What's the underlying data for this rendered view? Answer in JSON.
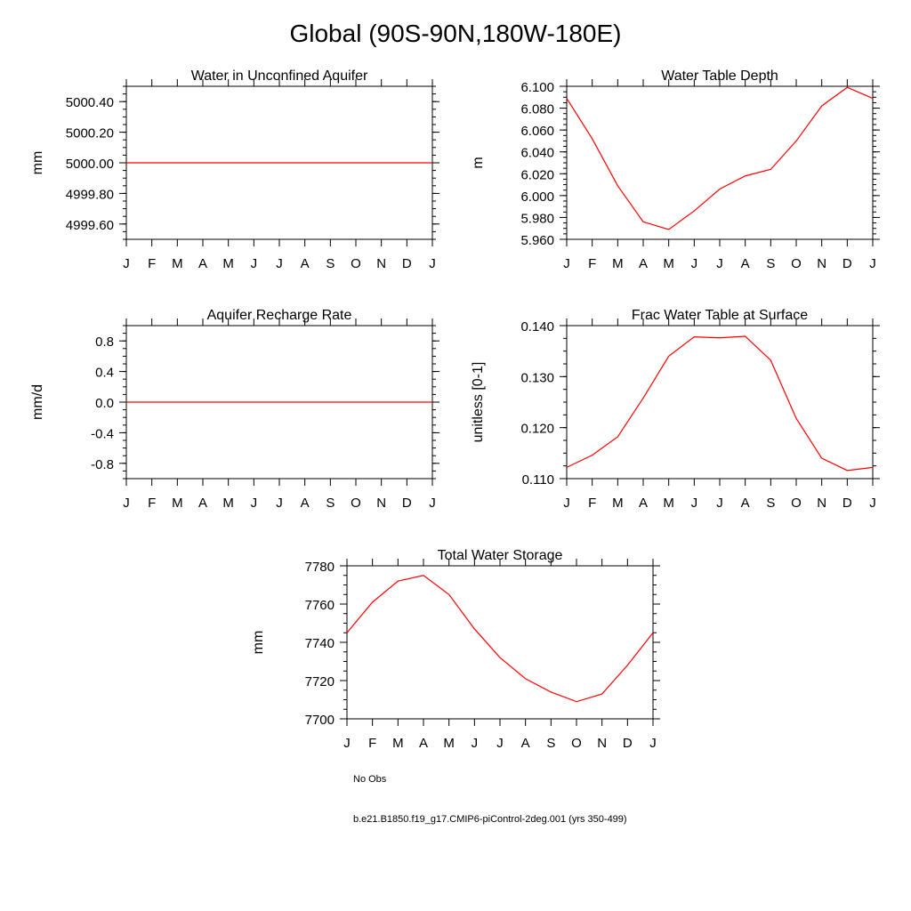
{
  "page_title": "Global (90S-90N,180W-180E)",
  "chart_data": [
    {
      "id": "aquifer",
      "type": "line",
      "title": "Water in Unconfined Aquifer",
      "ylabel": "mm",
      "xlabel": "",
      "categories": [
        "J",
        "F",
        "M",
        "A",
        "M",
        "J",
        "J",
        "A",
        "S",
        "O",
        "N",
        "D",
        "J"
      ],
      "ylim": [
        4999.5,
        5000.5
      ],
      "yticks": [
        4999.6,
        4999.8,
        5000.0,
        5000.2,
        5000.4
      ],
      "ytick_labels": [
        "4999.60",
        "4999.80",
        "5000.00",
        "5000.20",
        "5000.40"
      ],
      "yminor": 0.05,
      "grid": false,
      "series": [
        {
          "name": "b.e21.B1850.f19_g17.CMIP6-piControl-2deg.001 (yrs 350-499)",
          "color": "#ff0000",
          "values": [
            5000.0,
            5000.0,
            5000.0,
            5000.0,
            5000.0,
            5000.0,
            5000.0,
            5000.0,
            5000.0,
            5000.0,
            5000.0,
            5000.0,
            5000.0
          ]
        }
      ]
    },
    {
      "id": "wtd",
      "type": "line",
      "title": "Water Table Depth",
      "ylabel": "m",
      "xlabel": "",
      "categories": [
        "J",
        "F",
        "M",
        "A",
        "M",
        "J",
        "J",
        "A",
        "S",
        "O",
        "N",
        "D",
        "J"
      ],
      "ylim": [
        5.96,
        6.1
      ],
      "yticks": [
        5.96,
        5.98,
        6.0,
        6.02,
        6.04,
        6.06,
        6.08,
        6.1
      ],
      "ytick_labels": [
        "5.960",
        "5.980",
        "6.000",
        "6.020",
        "6.040",
        "6.060",
        "6.080",
        "6.100"
      ],
      "yminor": 0.005,
      "grid": false,
      "series": [
        {
          "name": "b.e21.B1850.f19_g17.CMIP6-piControl-2deg.001 (yrs 350-499)",
          "color": "#ff0000",
          "values": [
            6.089,
            6.052,
            6.009,
            5.976,
            5.969,
            5.986,
            6.006,
            6.018,
            6.024,
            6.05,
            6.082,
            6.099,
            6.089
          ]
        }
      ]
    },
    {
      "id": "recharge",
      "type": "line",
      "title": "Aquifer Recharge Rate",
      "ylabel": "mm/d",
      "xlabel": "",
      "categories": [
        "J",
        "F",
        "M",
        "A",
        "M",
        "J",
        "J",
        "A",
        "S",
        "O",
        "N",
        "D",
        "J"
      ],
      "ylim": [
        -1.0,
        1.0
      ],
      "yticks": [
        -0.8,
        -0.4,
        0.0,
        0.4,
        0.8
      ],
      "ytick_labels": [
        "-0.8",
        "-0.4",
        "0.0",
        "0.4",
        "0.8"
      ],
      "yminor": 0.1,
      "grid": false,
      "series": [
        {
          "name": "b.e21.B1850.f19_g17.CMIP6-piControl-2deg.001 (yrs 350-499)",
          "color": "#ff0000",
          "values": [
            0,
            0,
            0,
            0,
            0,
            0,
            0,
            0,
            0,
            0,
            0,
            0,
            0
          ]
        }
      ]
    },
    {
      "id": "frac",
      "type": "line",
      "title": "Frac Water Table at Surface",
      "ylabel": "unitless [0-1]",
      "xlabel": "",
      "categories": [
        "J",
        "F",
        "M",
        "A",
        "M",
        "J",
        "J",
        "A",
        "S",
        "O",
        "N",
        "D",
        "J"
      ],
      "ylim": [
        0.11,
        0.14
      ],
      "yticks": [
        0.11,
        0.12,
        0.13,
        0.14
      ],
      "ytick_labels": [
        "0.110",
        "0.120",
        "0.130",
        "0.140"
      ],
      "yminor": 0.0025,
      "grid": false,
      "series": [
        {
          "name": "b.e21.B1850.f19_g17.CMIP6-piControl-2deg.001 (yrs 350-499)",
          "color": "#ff0000",
          "values": [
            0.1122,
            0.1146,
            0.1182,
            0.1258,
            0.134,
            0.1378,
            0.1376,
            0.1379,
            0.1332,
            0.1218,
            0.114,
            0.1116,
            0.1122
          ]
        }
      ]
    },
    {
      "id": "tws",
      "type": "line",
      "title": "Total Water Storage",
      "ylabel": "mm",
      "xlabel": "",
      "categories": [
        "J",
        "F",
        "M",
        "A",
        "M",
        "J",
        "J",
        "A",
        "S",
        "O",
        "N",
        "D",
        "J"
      ],
      "ylim": [
        7700,
        7780
      ],
      "yticks": [
        7700,
        7720,
        7740,
        7760,
        7780
      ],
      "ytick_labels": [
        "7700",
        "7720",
        "7740",
        "7760",
        "7780"
      ],
      "yminor": 5,
      "grid": false,
      "series": [
        {
          "name": "b.e21.B1850.f19_g17.CMIP6-piControl-2deg.001 (yrs 350-499)",
          "color": "#ff0000",
          "values": [
            7745,
            7761,
            7772,
            7775,
            7765,
            7747,
            7732,
            7721,
            7714,
            7709,
            7713,
            7728,
            7745
          ]
        }
      ]
    }
  ],
  "legend": {
    "items": [
      {
        "label": "No Obs",
        "color": "#000000",
        "style": "dashed"
      },
      {
        "label": "b.e21.B1850.f19_g17.CMIP6-piControl-2deg.001 (yrs 350-499)",
        "color": "#ff0000",
        "style": "solid"
      }
    ]
  }
}
